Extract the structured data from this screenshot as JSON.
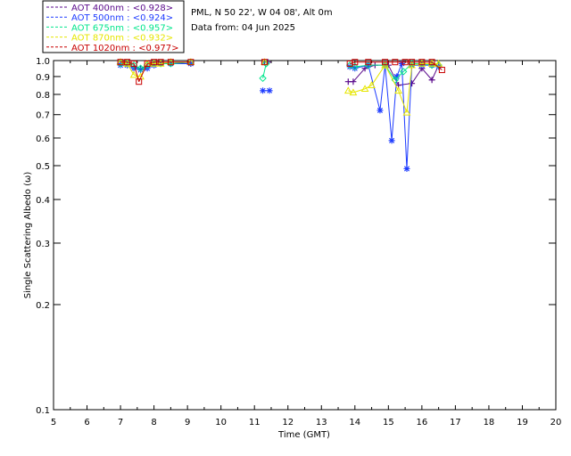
{
  "header": {
    "site": "PML, N 50 22', W 04 08', Alt 0m",
    "date_line": "Data from: 04 Jun 2025"
  },
  "legend": [
    {
      "label": "AOT  400nm : <0.928>",
      "color": "#5a0a8c"
    },
    {
      "label": "AOT  500nm : <0.924>",
      "color": "#1e3cff"
    },
    {
      "label": "AOT  675nm : <0.957>",
      "color": "#00e68c"
    },
    {
      "label": "AOT  870nm : <0.932>",
      "color": "#e6e600"
    },
    {
      "label": "AOT 1020nm : <0.977>",
      "color": "#c80000"
    }
  ],
  "chart_data": {
    "type": "scatter",
    "title": "",
    "xlabel": "Time (GMT)",
    "ylabel": "Single Scattering Albedo (ω)",
    "xlim": [
      5,
      20
    ],
    "ylim": [
      0.1,
      1.0
    ],
    "yscale": "log",
    "xticks": [
      "5",
      "6",
      "7",
      "8",
      "9",
      "10",
      "11",
      "12",
      "13",
      "14",
      "15",
      "16",
      "17",
      "18",
      "19",
      "20"
    ],
    "yticks": [
      {
        "value": 0.1,
        "label": "0.1"
      },
      {
        "value": 0.2,
        "label": "0.2"
      },
      {
        "value": 0.3,
        "label": "0.3"
      },
      {
        "value": 0.4,
        "label": "0.4"
      },
      {
        "value": 0.5,
        "label": "0.5"
      },
      {
        "value": 0.6,
        "label": "0.6"
      },
      {
        "value": 0.7,
        "label": "0.7"
      },
      {
        "value": 0.8,
        "label": "0.8"
      },
      {
        "value": 0.9,
        "label": "0.9"
      },
      {
        "value": 1.0,
        "label": "1.0"
      }
    ],
    "series": [
      {
        "name": "AOT 400nm",
        "marker": "plus",
        "color": "#5a0a8c",
        "points": [
          [
            7.0,
            0.98
          ],
          [
            7.2,
            0.97
          ],
          [
            7.4,
            0.96
          ],
          [
            7.6,
            0.95
          ],
          [
            7.8,
            0.96
          ],
          [
            8.0,
            0.97
          ],
          [
            8.2,
            0.98
          ],
          [
            8.5,
            0.98
          ],
          [
            9.1,
            0.98
          ],
          [
            11.3,
            0.99
          ],
          [
            11.4,
            0.99
          ],
          [
            13.8,
            0.87
          ],
          [
            13.95,
            0.87
          ],
          [
            14.3,
            0.95
          ],
          [
            14.6,
            0.97
          ],
          [
            15.0,
            0.97
          ],
          [
            15.3,
            0.85
          ],
          [
            15.7,
            0.86
          ],
          [
            16.0,
            0.95
          ],
          [
            16.3,
            0.88
          ],
          [
            16.5,
            0.97
          ]
        ]
      },
      {
        "name": "AOT 500nm",
        "marker": "asterisk",
        "color": "#1e3cff",
        "points": [
          [
            7.0,
            0.97
          ],
          [
            7.2,
            0.97
          ],
          [
            7.4,
            0.95
          ],
          [
            7.6,
            0.94
          ],
          [
            7.8,
            0.95
          ],
          [
            8.0,
            0.97
          ],
          [
            8.2,
            0.98
          ],
          [
            8.5,
            0.98
          ],
          [
            9.1,
            0.98
          ],
          [
            11.25,
            0.82
          ],
          [
            11.45,
            0.82
          ],
          [
            13.85,
            0.96
          ],
          [
            14.0,
            0.95
          ],
          [
            14.4,
            0.97
          ],
          [
            14.75,
            0.72
          ],
          [
            14.9,
            0.97
          ],
          [
            15.1,
            0.59
          ],
          [
            15.25,
            0.9
          ],
          [
            15.4,
            0.98
          ],
          [
            15.55,
            0.49
          ],
          [
            15.7,
            0.97
          ],
          [
            16.0,
            0.97
          ],
          [
            16.3,
            0.97
          ],
          [
            16.5,
            0.96
          ]
        ]
      },
      {
        "name": "AOT 675nm",
        "marker": "diamond",
        "color": "#00e68c",
        "points": [
          [
            7.0,
            0.98
          ],
          [
            7.2,
            0.98
          ],
          [
            7.4,
            0.97
          ],
          [
            7.6,
            0.95
          ],
          [
            7.8,
            0.97
          ],
          [
            8.0,
            0.98
          ],
          [
            8.2,
            0.98
          ],
          [
            8.5,
            0.98
          ],
          [
            9.1,
            0.99
          ],
          [
            11.25,
            0.89
          ],
          [
            11.35,
            0.98
          ],
          [
            13.85,
            0.97
          ],
          [
            14.0,
            0.96
          ],
          [
            14.4,
            0.97
          ],
          [
            14.9,
            0.97
          ],
          [
            15.2,
            0.88
          ],
          [
            15.45,
            0.93
          ],
          [
            15.7,
            0.98
          ],
          [
            16.0,
            0.98
          ],
          [
            16.3,
            0.97
          ],
          [
            16.5,
            0.97
          ]
        ]
      },
      {
        "name": "AOT 870nm",
        "marker": "triangle",
        "color": "#e6e600",
        "points": [
          [
            7.0,
            0.99
          ],
          [
            7.2,
            0.98
          ],
          [
            7.4,
            0.91
          ],
          [
            7.6,
            0.9
          ],
          [
            7.8,
            0.98
          ],
          [
            8.0,
            0.98
          ],
          [
            8.2,
            0.98
          ],
          [
            8.5,
            0.99
          ],
          [
            9.1,
            0.99
          ],
          [
            11.3,
            0.99
          ],
          [
            13.8,
            0.82
          ],
          [
            13.95,
            0.81
          ],
          [
            14.3,
            0.83
          ],
          [
            14.5,
            0.85
          ],
          [
            14.9,
            0.97
          ],
          [
            15.3,
            0.82
          ],
          [
            15.55,
            0.71
          ],
          [
            15.7,
            0.97
          ],
          [
            16.0,
            0.98
          ],
          [
            16.3,
            0.98
          ],
          [
            16.5,
            0.98
          ]
        ]
      },
      {
        "name": "AOT 1020nm",
        "marker": "square",
        "color": "#c80000",
        "points": [
          [
            7.0,
            0.99
          ],
          [
            7.2,
            0.99
          ],
          [
            7.4,
            0.98
          ],
          [
            7.55,
            0.87
          ],
          [
            7.8,
            0.98
          ],
          [
            8.0,
            0.99
          ],
          [
            8.2,
            0.99
          ],
          [
            8.5,
            0.99
          ],
          [
            9.1,
            0.99
          ],
          [
            11.3,
            0.99
          ],
          [
            13.85,
            0.98
          ],
          [
            14.0,
            0.99
          ],
          [
            14.4,
            0.99
          ],
          [
            14.9,
            0.99
          ],
          [
            15.2,
            0.99
          ],
          [
            15.5,
            0.99
          ],
          [
            15.7,
            0.99
          ],
          [
            16.0,
            0.99
          ],
          [
            16.3,
            0.99
          ],
          [
            16.6,
            0.94
          ]
        ]
      }
    ]
  }
}
